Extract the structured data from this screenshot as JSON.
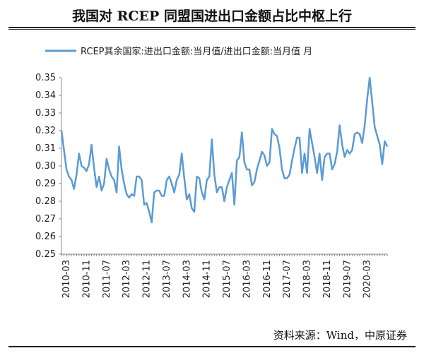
{
  "header": {
    "title": "我国对 RCEP 同盟国进出口金额占比中枢上行"
  },
  "footer": {
    "source": "资料来源：Wind，中原证券"
  },
  "colors": {
    "series": "#5b9bd5",
    "axis": "#888888"
  },
  "chart_data": {
    "type": "line",
    "title": "我国对 RCEP 同盟国进出口金额占比中枢上行",
    "xlabel": "",
    "ylabel": "",
    "ylim": [
      0.25,
      0.35
    ],
    "yticks": [
      0.25,
      0.26,
      0.27,
      0.28,
      0.29,
      0.3,
      0.31,
      0.32,
      0.33,
      0.34,
      0.35
    ],
    "ytick_labels": [
      "0.25",
      "0.26",
      "0.27",
      "0.28",
      "0.29",
      "0.30",
      "0.31",
      "0.32",
      "0.33",
      "0.34",
      "0.35"
    ],
    "xtick_labels": [
      "2010-03",
      "2010-11",
      "2011-07",
      "2012-03",
      "2012-11",
      "2013-07",
      "2014-03",
      "2014-11",
      "2015-07",
      "2016-03",
      "2016-11",
      "2017-07",
      "2018-03",
      "2018-11",
      "2019-07",
      "2020-03"
    ],
    "grid": false,
    "legend": "top-left",
    "x_start": "2010-01",
    "x_end": "2020-12",
    "series": [
      {
        "name": "RCEP其余国家:进出口金额:当月值/进出口金额:当月值 月",
        "values": [
          0.32,
          0.309,
          0.298,
          0.294,
          0.292,
          0.287,
          0.295,
          0.307,
          0.3,
          0.299,
          0.297,
          0.301,
          0.312,
          0.299,
          0.288,
          0.294,
          0.286,
          0.29,
          0.304,
          0.298,
          0.294,
          0.292,
          0.285,
          0.311,
          0.298,
          0.29,
          0.284,
          0.282,
          0.284,
          0.283,
          0.294,
          0.294,
          0.292,
          0.278,
          0.279,
          0.274,
          0.268,
          0.285,
          0.286,
          0.286,
          0.283,
          0.283,
          0.292,
          0.294,
          0.29,
          0.285,
          0.292,
          0.295,
          0.307,
          0.293,
          0.281,
          0.284,
          0.276,
          0.274,
          0.294,
          0.293,
          0.285,
          0.281,
          0.292,
          0.294,
          0.315,
          0.295,
          0.285,
          0.288,
          0.288,
          0.28,
          0.288,
          0.292,
          0.296,
          0.278,
          0.303,
          0.305,
          0.319,
          0.302,
          0.298,
          0.298,
          0.289,
          0.291,
          0.298,
          0.303,
          0.308,
          0.306,
          0.3,
          0.302,
          0.321,
          0.318,
          0.317,
          0.31,
          0.298,
          0.293,
          0.293,
          0.295,
          0.303,
          0.31,
          0.316,
          0.316,
          0.296,
          0.307,
          0.296,
          0.321,
          0.313,
          0.305,
          0.296,
          0.307,
          0.292,
          0.305,
          0.307,
          0.307,
          0.298,
          0.301,
          0.308,
          0.323,
          0.312,
          0.305,
          0.309,
          0.307,
          0.309,
          0.318,
          0.319,
          0.318,
          0.313,
          0.323,
          0.338,
          0.35,
          0.336,
          0.322,
          0.317,
          0.312,
          0.301,
          0.314,
          0.311
        ]
      }
    ]
  }
}
